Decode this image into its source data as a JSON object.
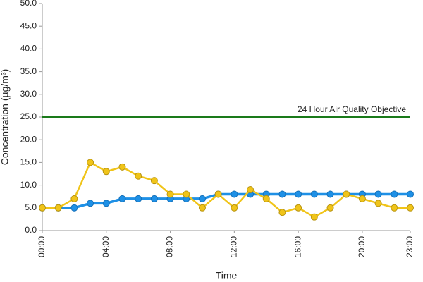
{
  "chart_data": {
    "type": "line",
    "y_label": "Concentration (µg/m³)",
    "x_label": "Time",
    "categories": [
      "00:00",
      null,
      null,
      null,
      "04:00",
      null,
      null,
      null,
      "08:00",
      null,
      null,
      null,
      "12:00",
      null,
      null,
      null,
      "16:00",
      null,
      null,
      null,
      "20:00",
      null,
      null,
      "23:00"
    ],
    "series": [
      {
        "color": "#f0c419",
        "values": [
          5,
          5,
          7,
          15,
          13,
          14,
          12,
          11,
          8,
          8,
          5,
          8,
          5,
          9,
          7,
          4,
          5,
          3,
          5,
          8,
          7,
          6,
          5,
          5
        ]
      },
      {
        "color": "#1e90e6",
        "values": [
          5,
          5,
          5,
          6,
          6,
          7,
          7,
          7,
          7,
          7,
          7,
          8,
          8,
          8,
          8,
          8,
          8,
          8,
          8,
          8,
          8,
          8,
          8,
          8
        ]
      }
    ],
    "reference_line": {
      "value": 25,
      "label": "24 Hour Air Quality Objective",
      "color": "#1a7a1a"
    },
    "ylim": [
      0,
      50
    ],
    "yticks": [
      {
        "value": 0,
        "label": "0.0"
      },
      {
        "value": 5,
        "label": "5.0"
      },
      {
        "value": 10,
        "label": "10.0"
      },
      {
        "value": 15,
        "label": "15.0"
      },
      {
        "value": 20,
        "label": "20.0"
      },
      {
        "value": 25,
        "label": "25.0"
      },
      {
        "value": 30,
        "label": "30.0"
      },
      {
        "value": 35,
        "label": "35.0"
      },
      {
        "value": 40,
        "label": "40.0"
      },
      {
        "value": 45,
        "label": "45.0"
      },
      {
        "value": 50,
        "label": "50.0"
      }
    ]
  }
}
